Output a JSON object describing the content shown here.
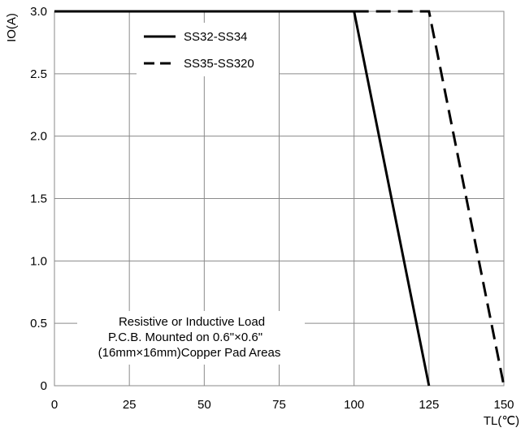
{
  "chart_data": {
    "type": "line",
    "xlabel": "TL(℃)",
    "ylabel": "IO(A)",
    "xlim": [
      0,
      150
    ],
    "ylim": [
      0,
      3.0
    ],
    "x_ticks": [
      0,
      25,
      50,
      75,
      100,
      125,
      150
    ],
    "y_ticks": [
      "0",
      "0.5",
      "1.0",
      "1.5",
      "2.0",
      "2.5",
      "3.0"
    ],
    "grid": true,
    "legend_position": "top-center",
    "series": [
      {
        "name": "SS32-SS34",
        "line_style": "solid",
        "color": "#000000",
        "points": [
          [
            0,
            3.0
          ],
          [
            100,
            3.0
          ],
          [
            125,
            0
          ]
        ]
      },
      {
        "name": "SS35-SS320",
        "line_style": "dashed",
        "color": "#000000",
        "points": [
          [
            100,
            3.0
          ],
          [
            125,
            3.0
          ],
          [
            150,
            0
          ]
        ]
      }
    ],
    "annotation": [
      "Resistive or Inductive Load",
      "P.C.B. Mounted on 0.6\"×0.6\"",
      "(16mm×16mm)Copper Pad Areas"
    ]
  }
}
